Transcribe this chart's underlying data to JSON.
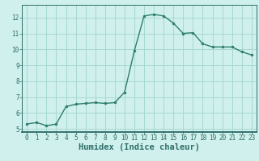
{
  "x": [
    0,
    1,
    2,
    3,
    4,
    5,
    6,
    7,
    8,
    9,
    10,
    11,
    12,
    13,
    14,
    15,
    16,
    17,
    18,
    19,
    20,
    21,
    22,
    23
  ],
  "y": [
    5.3,
    5.4,
    5.2,
    5.3,
    6.4,
    6.55,
    6.6,
    6.65,
    6.6,
    6.65,
    7.3,
    9.9,
    12.1,
    12.2,
    12.1,
    11.65,
    11.0,
    11.05,
    10.35,
    10.15,
    10.15,
    10.15,
    9.85,
    9.65
  ],
  "line_color": "#2e7d6e",
  "marker": "o",
  "markersize": 2.0,
  "linewidth": 1.0,
  "bg_color": "#cff0ec",
  "grid_color": "#a8d8d2",
  "xlabel": "Humidex (Indice chaleur)",
  "xlim": [
    -0.5,
    23.5
  ],
  "ylim": [
    4.8,
    12.8
  ],
  "xticks": [
    0,
    1,
    2,
    3,
    4,
    5,
    6,
    7,
    8,
    9,
    10,
    11,
    12,
    13,
    14,
    15,
    16,
    17,
    18,
    19,
    20,
    21,
    22,
    23
  ],
  "yticks": [
    5,
    6,
    7,
    8,
    9,
    10,
    11,
    12
  ],
  "tick_fontsize": 5.5,
  "xlabel_fontsize": 7.5
}
